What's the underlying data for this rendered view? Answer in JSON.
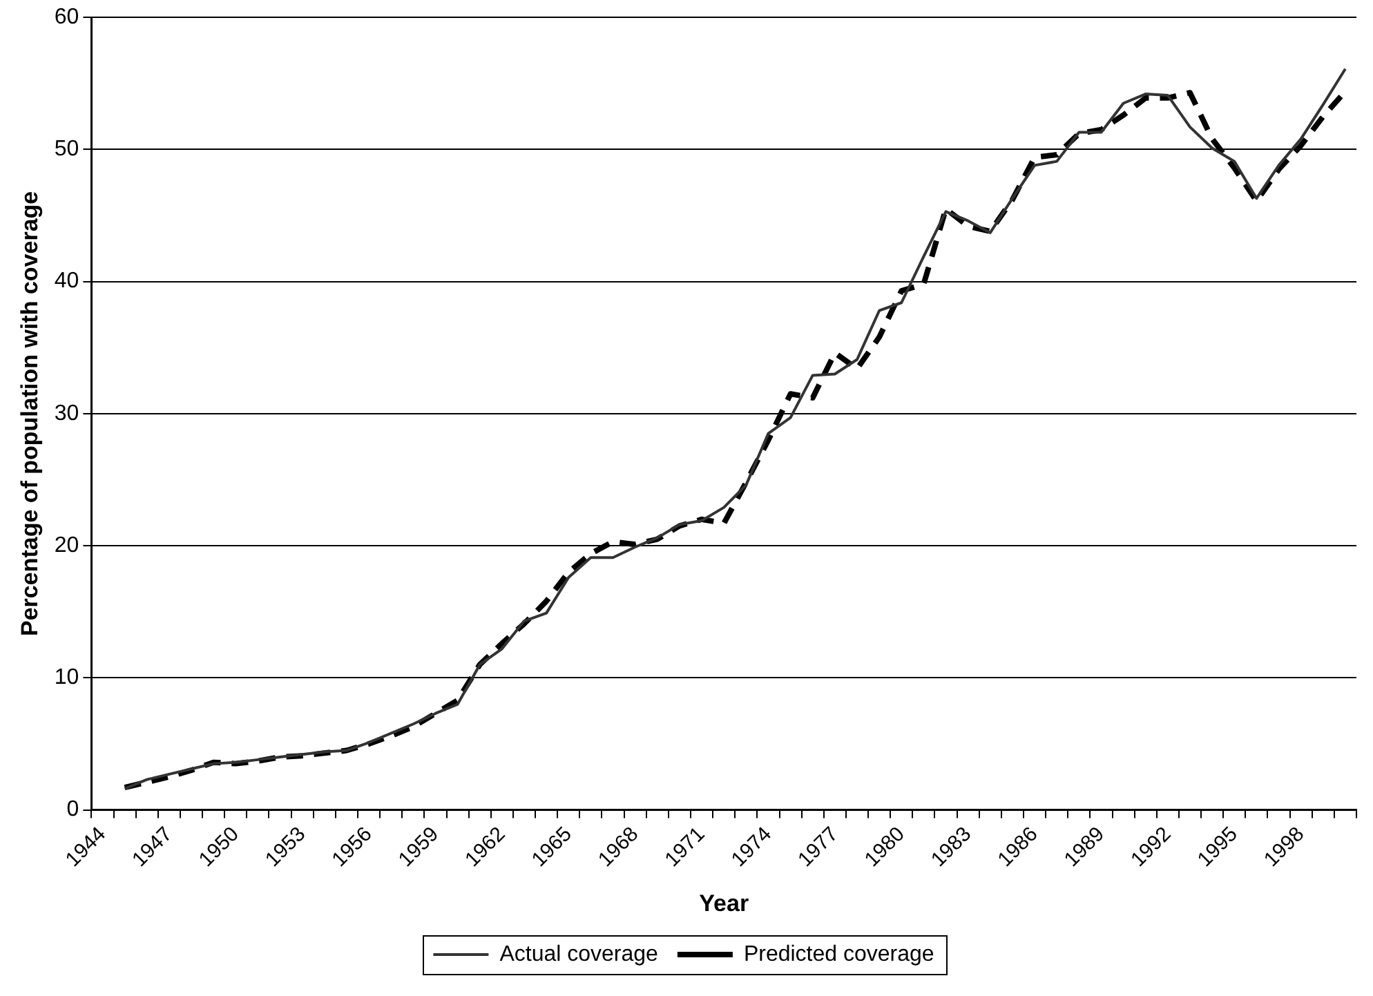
{
  "chart_data": {
    "type": "line",
    "xlabel": "Year",
    "ylabel": "Percentage of population with coverage",
    "categories": [
      "1944",
      null,
      null,
      "1947",
      null,
      null,
      "1950",
      null,
      null,
      "1953",
      null,
      null,
      "1956",
      null,
      null,
      "1959",
      null,
      null,
      "1962",
      null,
      null,
      "1965",
      null,
      null,
      "1968",
      null,
      null,
      "1971",
      null,
      null,
      "1974",
      null,
      null,
      "1977",
      null,
      null,
      "1980",
      null,
      null,
      "1983",
      null,
      null,
      "1986",
      null,
      null,
      "1989",
      null,
      null,
      "1992",
      null,
      null,
      "1995",
      null,
      null,
      "1998",
      null,
      null
    ],
    "series": [
      {
        "name": "Actual coverage",
        "color": "#333333",
        "line_style": "solid",
        "values": [
          null,
          1.6,
          2.3,
          2.7,
          3.1,
          3.5,
          3.6,
          3.8,
          4.0,
          4.2,
          4.4,
          4.5,
          5.1,
          5.8,
          6.5,
          7.3,
          8.0,
          11.0,
          12.2,
          14.3,
          14.9,
          17.6,
          19.1,
          19.1,
          19.9,
          20.6,
          21.6,
          21.9,
          22.9,
          24.6,
          28.5,
          29.7,
          32.9,
          33.0,
          34.1,
          37.8,
          38.4,
          41.9,
          45.3,
          44.6,
          43.7,
          46.3,
          48.8,
          49.1,
          51.3,
          51.3,
          53.5,
          54.2,
          54.1,
          51.7,
          50.1,
          49.1,
          46.3,
          48.8,
          50.8,
          53.4,
          56.1
        ]
      },
      {
        "name": "Predicted coverage",
        "color": "#000000",
        "line_style": "dashed",
        "values": [
          null,
          1.7,
          2.1,
          2.5,
          3.0,
          3.6,
          3.5,
          3.7,
          4.0,
          4.1,
          4.3,
          4.5,
          5.0,
          5.6,
          6.3,
          7.3,
          8.3,
          11.0,
          12.6,
          14.1,
          15.8,
          18.0,
          19.4,
          20.3,
          20.1,
          20.5,
          21.5,
          22.0,
          21.7,
          24.8,
          28.0,
          31.5,
          31.2,
          34.6,
          33.4,
          35.8,
          39.3,
          39.8,
          45.5,
          44.2,
          43.8,
          46.2,
          49.4,
          49.6,
          51.2,
          51.5,
          52.6,
          53.9,
          53.9,
          54.3,
          50.8,
          48.6,
          46.1,
          48.5,
          50.3,
          52.5,
          54.4
        ]
      }
    ],
    "ylim": [
      0,
      60
    ],
    "yticks": [
      0,
      10,
      20,
      30,
      40,
      50,
      60
    ],
    "grid": "y",
    "legend": "bottom",
    "marker": "none"
  }
}
